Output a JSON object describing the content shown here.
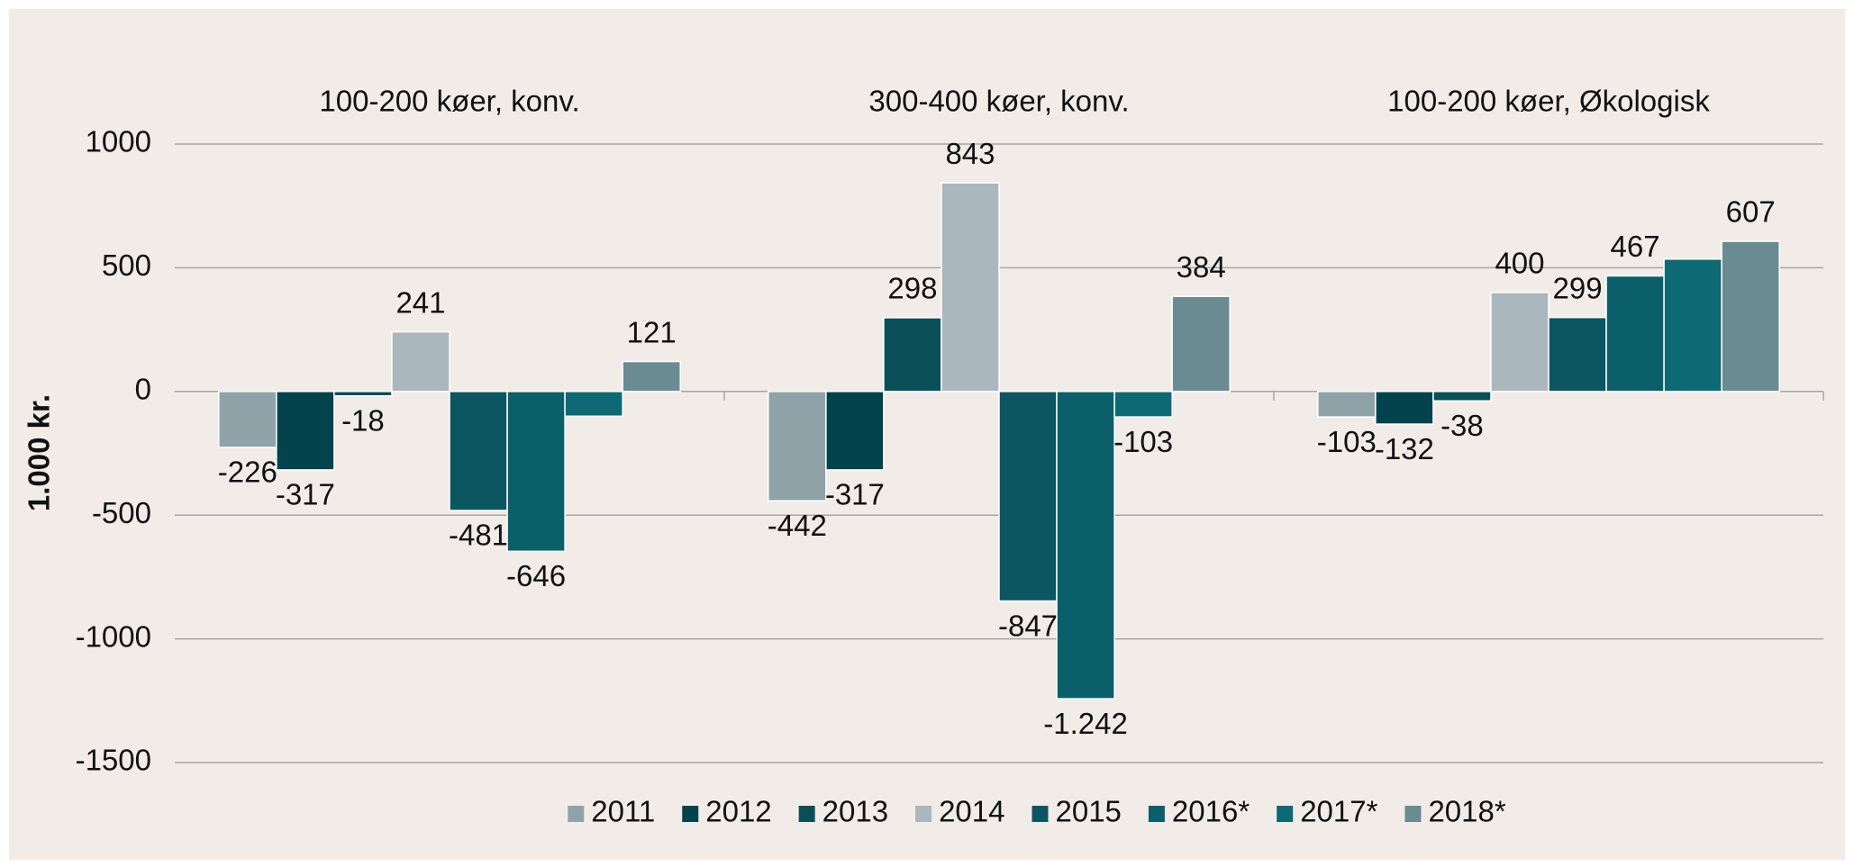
{
  "chart_data": {
    "type": "bar",
    "y_label": "1.000 kr.",
    "categories": [
      "100-200 køer, konv.",
      "300-400 køer, konv.",
      "100-200 køer, Økologisk"
    ],
    "series": [
      {
        "name": "2011",
        "color": "#8fa3a8",
        "values": [
          -226,
          -442,
          -103
        ],
        "value_labels": [
          "-226",
          "-442",
          "-103"
        ]
      },
      {
        "name": "2012",
        "color": "#03434d",
        "values": [
          -317,
          -317,
          -132
        ],
        "value_labels": [
          "-317",
          "-317",
          "-132"
        ]
      },
      {
        "name": "2013",
        "color": "#0a4f58",
        "values": [
          -18,
          298,
          -38
        ],
        "value_labels": [
          "-18",
          "298",
          "-38"
        ]
      },
      {
        "name": "2014",
        "color": "#aab7bc",
        "values": [
          241,
          843,
          400
        ],
        "value_labels": [
          "241",
          "843",
          "400"
        ]
      },
      {
        "name": "2015",
        "color": "#0b5660",
        "values": [
          -481,
          -847,
          299
        ],
        "value_labels": [
          "-481",
          "-847",
          "299"
        ]
      },
      {
        "name": "2016*",
        "color": "#0b5f69",
        "values": [
          -646,
          -1242,
          467
        ],
        "value_labels": [
          "-646",
          "-1.242",
          "467"
        ]
      },
      {
        "name": "2017*",
        "color": "#0d6973",
        "values": [
          -100,
          -103,
          535
        ],
        "value_labels": [
          null,
          "-103",
          null
        ]
      },
      {
        "name": "2018*",
        "color": "#6a8b92",
        "values": [
          121,
          384,
          607
        ],
        "value_labels": [
          "121",
          "384",
          "607"
        ]
      }
    ],
    "ylim": [
      -1500,
      1000
    ],
    "yticks": [
      1000,
      500,
      0,
      -500,
      -1000,
      -1500
    ],
    "grid": true,
    "legend": "bottom"
  }
}
